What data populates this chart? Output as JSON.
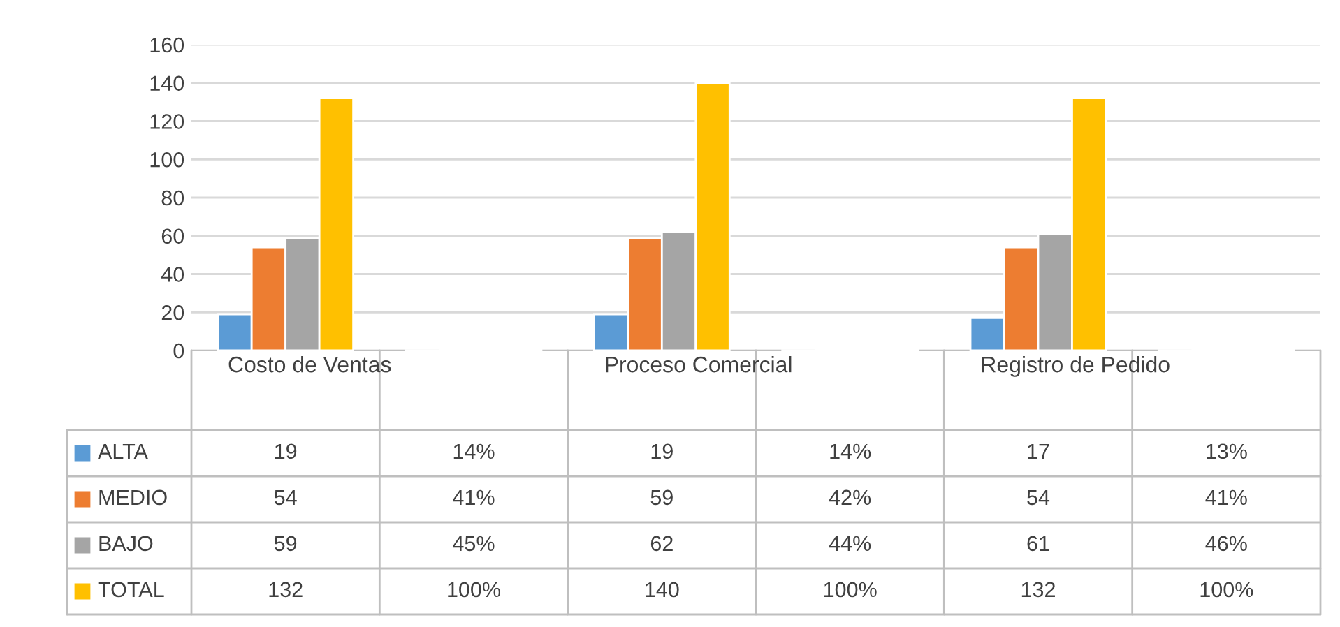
{
  "chart_data": {
    "type": "bar",
    "categories": [
      "Costo de Ventas",
      null,
      "Proceso Comercial",
      null,
      "Registro de Pedido",
      null
    ],
    "series": [
      {
        "name": "ALTA",
        "color": "#5b9bd5",
        "values": [
          19,
          0.14,
          19,
          0.14,
          17,
          0.13
        ],
        "value_labels": [
          "19",
          "14%",
          "19",
          "14%",
          "17",
          "13%"
        ]
      },
      {
        "name": "MEDIO",
        "color": "#ed7d31",
        "values": [
          54,
          0.41,
          59,
          0.42,
          54,
          0.41
        ],
        "value_labels": [
          "54",
          "41%",
          "59",
          "42%",
          "54",
          "41%"
        ]
      },
      {
        "name": "BAJO",
        "color": "#a5a5a5",
        "values": [
          59,
          0.45,
          62,
          0.44,
          61,
          0.46
        ],
        "value_labels": [
          "59",
          "45%",
          "62",
          "44%",
          "61",
          "46%"
        ]
      },
      {
        "name": "TOTAL",
        "color": "#ffc000",
        "values": [
          132,
          1,
          140,
          1,
          132,
          1
        ],
        "value_labels": [
          "132",
          "100%",
          "140",
          "100%",
          "132",
          "100%"
        ]
      }
    ],
    "ylim": [
      0,
      160
    ],
    "yticks": [
      0,
      20,
      40,
      60,
      80,
      100,
      120,
      140,
      160
    ],
    "grid": "y",
    "legend": "bottom"
  }
}
